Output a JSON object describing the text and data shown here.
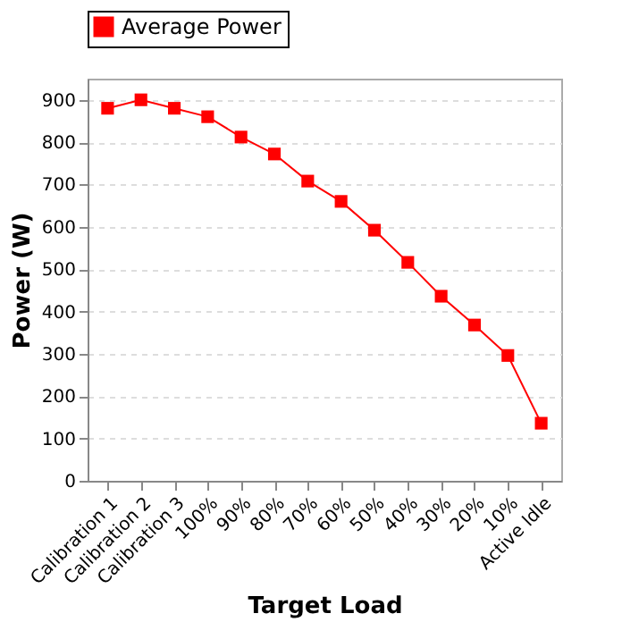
{
  "chart_data": {
    "type": "line",
    "xlabel": "Target Load",
    "ylabel": "Power (W)",
    "categories": [
      "Calibration 1",
      "Calibration 2",
      "Calibration 3",
      "100%",
      "90%",
      "80%",
      "70%",
      "60%",
      "50%",
      "40%",
      "30%",
      "20%",
      "10%",
      "Active Idle"
    ],
    "series": [
      {
        "name": "Average Power",
        "color": "#ff0000",
        "values": [
          880,
          900,
          880,
          860,
          812,
          772,
          708,
          660,
          592,
          516,
          436,
          368,
          296,
          136
        ]
      }
    ],
    "ylim": [
      0,
      950
    ],
    "yticks": [
      0,
      100,
      200,
      300,
      400,
      500,
      600,
      700,
      800,
      900
    ],
    "grid": "y",
    "legend": "top",
    "marker": "square",
    "line_style": "solid"
  }
}
